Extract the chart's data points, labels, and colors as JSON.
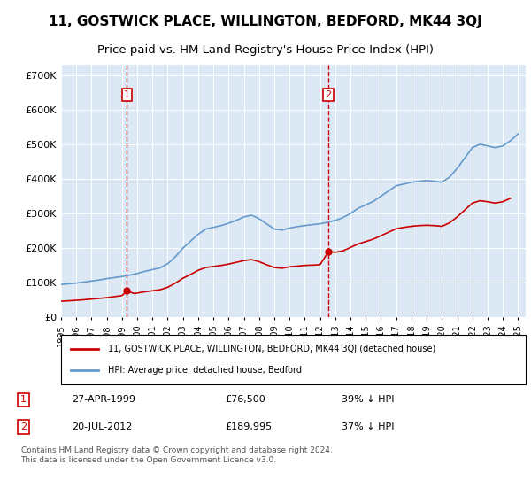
{
  "title": "11, GOSTWICK PLACE, WILLINGTON, BEDFORD, MK44 3QJ",
  "subtitle": "Price paid vs. HM Land Registry's House Price Index (HPI)",
  "title_fontsize": 11,
  "subtitle_fontsize": 9.5,
  "background_color": "#ffffff",
  "plot_bg_color": "#dce9f5",
  "grid_color": "#ffffff",
  "ylabel_ticks": [
    "£0",
    "£100K",
    "£200K",
    "£300K",
    "£400K",
    "£500K",
    "£600K",
    "£700K"
  ],
  "ytick_vals": [
    0,
    100000,
    200000,
    300000,
    400000,
    500000,
    600000,
    700000
  ],
  "ylim": [
    0,
    730000
  ],
  "xlim_start": 1995.0,
  "xlim_end": 2025.5,
  "sale1_x": 1999.32,
  "sale1_y": 76500,
  "sale1_label": "1",
  "sale1_date": "27-APR-1999",
  "sale1_price": "£76,500",
  "sale1_hpi": "39% ↓ HPI",
  "sale2_x": 2012.55,
  "sale2_y": 189995,
  "sale2_label": "2",
  "sale2_date": "20-JUL-2012",
  "sale2_price": "£189,995",
  "sale2_hpi": "37% ↓ HPI",
  "legend_line1": "11, GOSTWICK PLACE, WILLINGTON, BEDFORD, MK44 3QJ (detached house)",
  "legend_line2": "HPI: Average price, detached house, Bedford",
  "footer": "Contains HM Land Registry data © Crown copyright and database right 2024.\nThis data is licensed under the Open Government Licence v3.0.",
  "red_line_color": "#cc0000",
  "blue_line_color": "#6699cc",
  "xtick_years": [
    1995,
    1996,
    1997,
    1998,
    1999,
    2000,
    2001,
    2002,
    2003,
    2004,
    2005,
    2006,
    2007,
    2008,
    2009,
    2010,
    2011,
    2012,
    2013,
    2014,
    2015,
    2016,
    2017,
    2018,
    2019,
    2020,
    2021,
    2022,
    2023,
    2024,
    2025
  ]
}
